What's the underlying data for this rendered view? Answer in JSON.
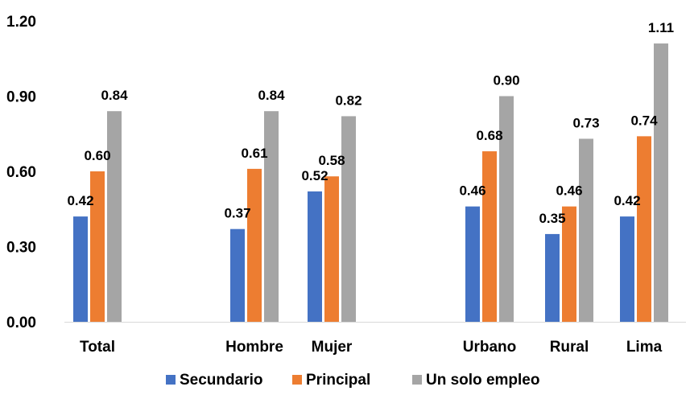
{
  "chart_data": {
    "type": "bar",
    "categories": [
      "Total",
      "Hombre",
      "Mujer",
      "Urbano",
      "Rural",
      "Lima"
    ],
    "series": [
      {
        "name": "Secundario",
        "color": "#4472C4",
        "values": [
          0.42,
          0.37,
          0.52,
          0.46,
          0.35,
          0.42
        ]
      },
      {
        "name": "Principal",
        "color": "#ED7D31",
        "values": [
          0.6,
          0.61,
          0.58,
          0.68,
          0.46,
          0.74
        ]
      },
      {
        "name": "Un solo empleo",
        "color": "#A5A5A5",
        "values": [
          0.84,
          0.84,
          0.82,
          0.9,
          0.73,
          1.11
        ]
      }
    ],
    "data_labels": [
      [
        "0.42",
        "0.37",
        "0.52",
        "0.46",
        "0.35",
        "0.42"
      ],
      [
        "0.60",
        "0.61",
        "0.58",
        "0.68",
        "0.46",
        "0.74"
      ],
      [
        "0.84",
        "0.84",
        "0.82",
        "0.90",
        "0.73",
        "1.11"
      ]
    ],
    "yticks": [
      "0.00",
      "0.30",
      "0.60",
      "0.90",
      "1.20"
    ],
    "ylim": [
      0,
      1.2
    ],
    "grid": false,
    "legend_position": "bottom",
    "title": "",
    "xlabel": "",
    "ylabel": ""
  }
}
